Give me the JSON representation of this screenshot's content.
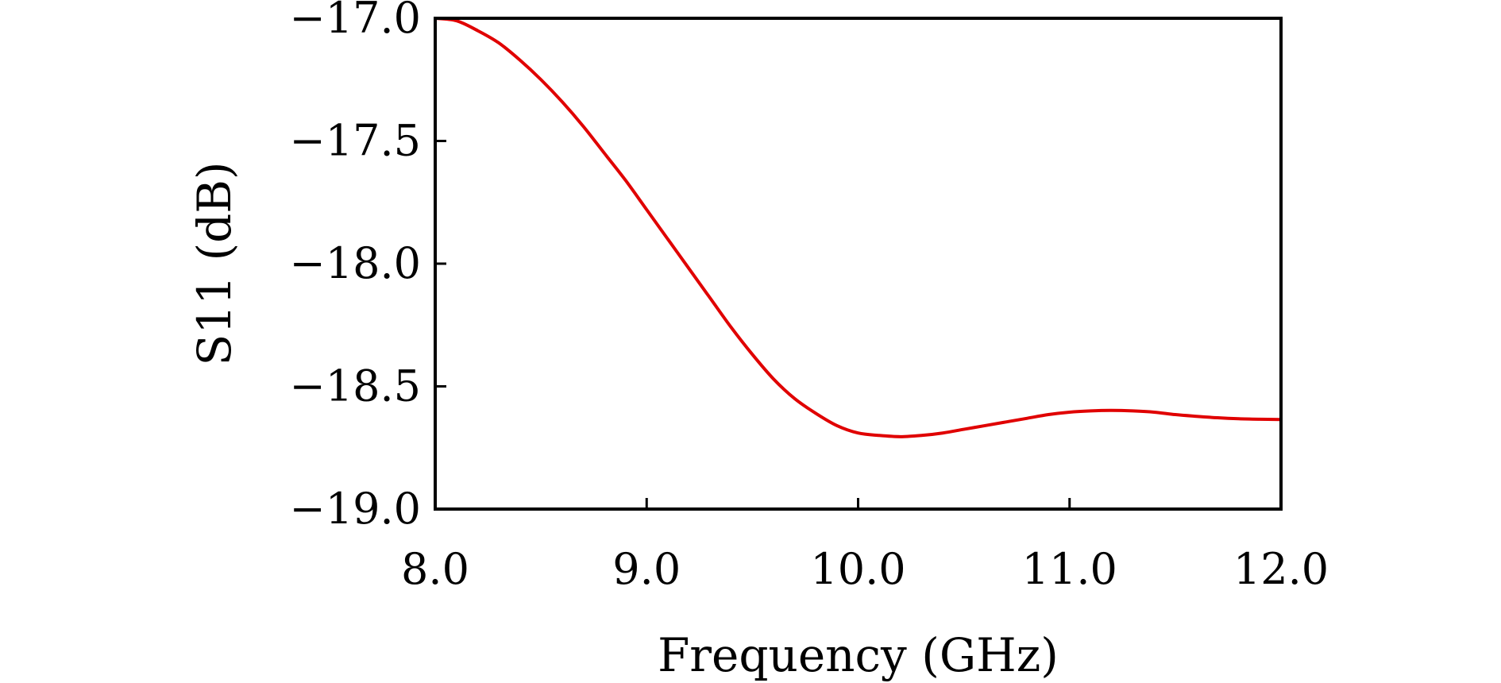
{
  "chart_data": {
    "type": "line",
    "title": "",
    "xlabel": "Frequency (GHz)",
    "ylabel": "S11 (dB)",
    "xlim": [
      8.0,
      12.0
    ],
    "ylim": [
      -19.0,
      -17.0
    ],
    "x_ticks": [
      8.0,
      9.0,
      10.0,
      11.0,
      12.0
    ],
    "x_tick_labels": [
      "8.0",
      "9.0",
      "10.0",
      "11.0",
      "12.0"
    ],
    "y_ticks": [
      -19.0,
      -18.5,
      -18.0,
      -17.5,
      -17.0
    ],
    "y_tick_labels": [
      "−19.0",
      "−18.5",
      "−18.0",
      "−17.5",
      "−17.0"
    ],
    "grid": false,
    "series": [
      {
        "color": "#e00000",
        "x": [
          8.0,
          8.1,
          8.2,
          8.3,
          8.4,
          8.5,
          8.6,
          8.7,
          8.8,
          8.9,
          9.0,
          9.1,
          9.2,
          9.3,
          9.4,
          9.5,
          9.6,
          9.7,
          9.8,
          9.9,
          10.0,
          10.1,
          10.2,
          10.3,
          10.4,
          10.5,
          10.6,
          10.7,
          10.8,
          10.9,
          11.0,
          11.1,
          11.2,
          11.3,
          11.4,
          11.5,
          11.6,
          11.7,
          11.8,
          11.9,
          12.0
        ],
        "y": [
          -17.0,
          -17.01,
          -17.05,
          -17.1,
          -17.17,
          -17.25,
          -17.34,
          -17.44,
          -17.55,
          -17.66,
          -17.78,
          -17.9,
          -18.02,
          -18.14,
          -18.26,
          -18.37,
          -18.47,
          -18.55,
          -18.61,
          -18.66,
          -18.69,
          -18.7,
          -18.705,
          -18.7,
          -18.69,
          -18.675,
          -18.66,
          -18.645,
          -18.63,
          -18.615,
          -18.605,
          -18.6,
          -18.598,
          -18.6,
          -18.605,
          -18.615,
          -18.622,
          -18.628,
          -18.632,
          -18.634,
          -18.635
        ]
      }
    ]
  }
}
